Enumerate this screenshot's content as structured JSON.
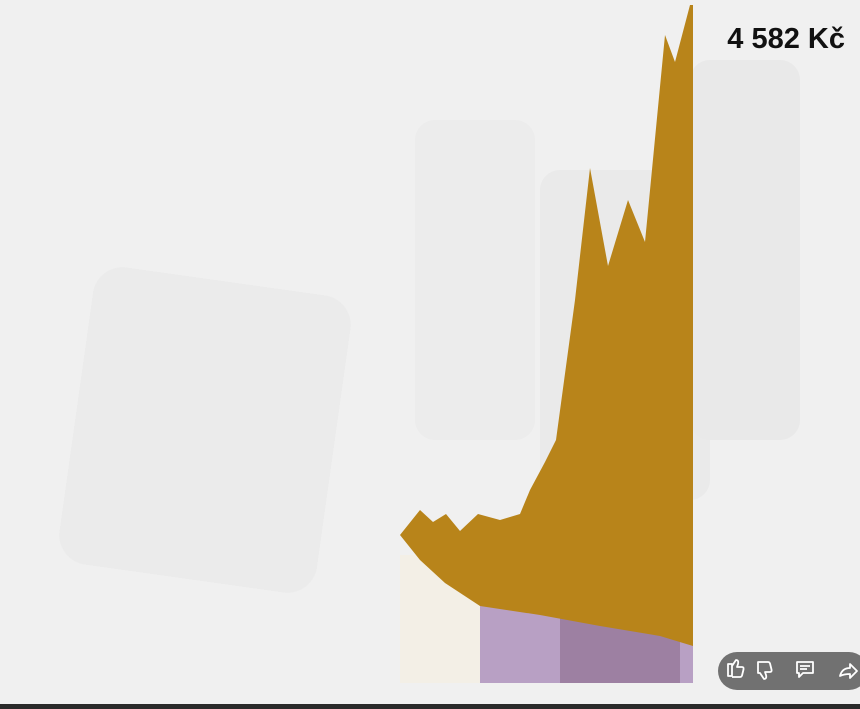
{
  "video_overlay": {
    "price": "4 582 Kč"
  }
}
